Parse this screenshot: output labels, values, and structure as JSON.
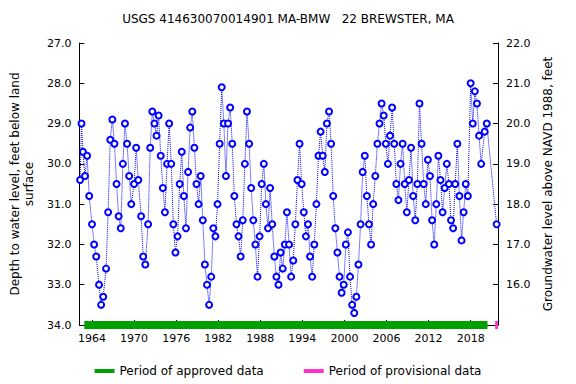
{
  "chart_data": {
    "type": "scatter",
    "title": "USGS 414630070014901 MA-BMW   22 BREWSTER, MA",
    "y_label": "Depth to water level, feet below land\nsurface",
    "y2_label": "Groundwater level above NAVD 1988, feet",
    "grid": false,
    "legend": "bottom",
    "xlim": [
      1962.2,
      2021.9
    ],
    "xticks": [
      1964,
      1970,
      1976,
      1982,
      1988,
      1994,
      2000,
      2006,
      2012,
      2018
    ],
    "ylim": [
      27,
      34
    ],
    "yticks": [
      {
        "value": 27,
        "label": "27.0"
      },
      {
        "value": 28,
        "label": "28.0"
      },
      {
        "value": 29,
        "label": "29.0"
      },
      {
        "value": 30,
        "label": "30.0"
      },
      {
        "value": 31,
        "label": "31.0"
      },
      {
        "value": 32,
        "label": "32.0"
      },
      {
        "value": 33,
        "label": "33.0"
      },
      {
        "value": 34,
        "label": "34.0"
      }
    ],
    "y2lim": [
      15,
      22
    ],
    "y2ticks": [
      {
        "value": 16,
        "label": "16.0"
      },
      {
        "value": 17,
        "label": "17.0"
      },
      {
        "value": 18,
        "label": "18.0"
      },
      {
        "value": 19,
        "label": "19.0"
      },
      {
        "value": 20,
        "label": "20.0"
      },
      {
        "value": 21,
        "label": "21.0"
      },
      {
        "value": 22,
        "label": "22.0"
      }
    ],
    "inverted_y": true,
    "series": [
      {
        "color": "#0000ff",
        "marker": "circle-open",
        "line_style": "dotted",
        "x": [
          1962.3,
          1962.5,
          1962.7,
          1963,
          1963.3,
          1963.6,
          1964,
          1964.3,
          1964.6,
          1965,
          1965.3,
          1965.6,
          1966,
          1966.3,
          1966.6,
          1966.9,
          1967.2,
          1967.5,
          1967.8,
          1968.1,
          1968.4,
          1968.7,
          1969,
          1969.3,
          1969.6,
          1970,
          1970.3,
          1970.6,
          1971,
          1971.3,
          1971.6,
          1972,
          1972.3,
          1972.6,
          1972.9,
          1973.2,
          1973.5,
          1973.8,
          1974.1,
          1974.4,
          1974.7,
          1975,
          1975.3,
          1975.6,
          1975.9,
          1976.2,
          1976.5,
          1976.8,
          1977.1,
          1977.4,
          1977.7,
          1978,
          1978.3,
          1978.6,
          1978.9,
          1979.2,
          1979.5,
          1979.8,
          1980.1,
          1980.4,
          1980.7,
          1981,
          1981.3,
          1981.6,
          1981.9,
          1982.2,
          1982.5,
          1982.8,
          1983.1,
          1983.4,
          1983.7,
          1984,
          1984.3,
          1984.6,
          1984.9,
          1985.2,
          1985.5,
          1985.8,
          1986.1,
          1986.4,
          1986.7,
          1987,
          1987.3,
          1987.6,
          1987.9,
          1988.2,
          1988.5,
          1988.8,
          1989.1,
          1989.4,
          1989.7,
          1990,
          1990.3,
          1990.6,
          1990.9,
          1991.2,
          1991.5,
          1991.8,
          1992.1,
          1992.4,
          1992.7,
          1993,
          1993.3,
          1993.6,
          1993.9,
          1994.2,
          1994.5,
          1994.8,
          1995.1,
          1995.4,
          1995.7,
          1996,
          1996.3,
          1996.6,
          1996.9,
          1997.2,
          1997.5,
          1997.8,
          1998.1,
          1998.4,
          1998.7,
          1999,
          1999.3,
          1999.6,
          1999.9,
          2000.2,
          2000.5,
          2000.8,
          2001.1,
          2001.4,
          2001.7,
          2002,
          2002.3,
          2002.6,
          2002.9,
          2003.2,
          2003.5,
          2003.8,
          2004.1,
          2004.4,
          2004.7,
          2005,
          2005.3,
          2005.6,
          2005.9,
          2006.2,
          2006.5,
          2006.8,
          2007.1,
          2007.4,
          2007.7,
          2008,
          2008.3,
          2008.6,
          2008.9,
          2009.2,
          2009.5,
          2009.8,
          2010.1,
          2010.4,
          2010.7,
          2011,
          2011.3,
          2011.6,
          2011.9,
          2012.2,
          2012.5,
          2012.8,
          2013.1,
          2013.4,
          2013.7,
          2014,
          2014.3,
          2014.6,
          2014.9,
          2015.2,
          2015.5,
          2015.8,
          2016.1,
          2016.4,
          2016.7,
          2017,
          2017.3,
          2017.6,
          2018,
          2018.3,
          2018.6,
          2018.9,
          2019.2,
          2019.5,
          2020,
          2020.3,
          2021.7
        ],
        "values": [
          30.4,
          29.0,
          29.7,
          30.3,
          29.8,
          30.8,
          31.5,
          32.0,
          32.3,
          33.0,
          33.5,
          33.3,
          32.6,
          31.2,
          29.4,
          28.9,
          29.5,
          30.5,
          31.3,
          31.6,
          30.0,
          29.0,
          29.5,
          30.3,
          31.0,
          30.5,
          29.6,
          30.4,
          31.3,
          32.3,
          32.5,
          31.5,
          29.6,
          28.7,
          29.0,
          29.3,
          28.8,
          29.8,
          30.6,
          31.2,
          30.0,
          29.0,
          30.0,
          31.5,
          32.2,
          31.8,
          30.5,
          29.7,
          30.8,
          31.6,
          30.2,
          29.1,
          28.7,
          29.6,
          30.5,
          31.0,
          30.3,
          31.4,
          32.5,
          33.0,
          33.5,
          32.8,
          31.6,
          31.8,
          31.0,
          29.5,
          28.1,
          29.0,
          30.3,
          29.0,
          28.6,
          29.5,
          30.8,
          31.5,
          31.8,
          32.3,
          31.4,
          30.0,
          28.7,
          29.5,
          30.6,
          31.4,
          32.0,
          32.8,
          31.8,
          30.5,
          30.0,
          31.0,
          31.6,
          30.6,
          31.5,
          32.3,
          32.8,
          33.0,
          32.2,
          32.6,
          32.0,
          31.2,
          32.0,
          32.8,
          32.4,
          31.5,
          30.4,
          29.5,
          30.5,
          31.2,
          31.8,
          31.5,
          32.3,
          32.8,
          32.0,
          31.0,
          29.8,
          29.2,
          29.8,
          30.2,
          29.0,
          28.7,
          29.5,
          30.8,
          31.6,
          32.2,
          32.8,
          33.2,
          33.0,
          32.0,
          31.7,
          32.8,
          33.5,
          33.7,
          33.3,
          32.5,
          31.5,
          30.2,
          29.8,
          30.8,
          31.5,
          32.0,
          31.0,
          30.3,
          29.5,
          29.0,
          28.5,
          28.8,
          29.5,
          30.0,
          29.3,
          28.6,
          29.5,
          30.5,
          30.9,
          30.0,
          29.5,
          30.5,
          31.2,
          30.4,
          29.6,
          30.8,
          31.4,
          30.5,
          28.5,
          29.5,
          30.5,
          31.0,
          29.9,
          30.3,
          31.4,
          32.0,
          31.0,
          29.8,
          30.4,
          31.2,
          30.6,
          30.0,
          30.5,
          31.4,
          31.6,
          30.5,
          29.5,
          30.8,
          31.9,
          31.2,
          30.5,
          30.8,
          28.0,
          29.0,
          28.2,
          28.5,
          29.3,
          30.0,
          29.2,
          29.0,
          31.5
        ]
      }
    ],
    "periods": [
      {
        "name": "Period of approved data",
        "color": "#00a000",
        "start": 1962.9,
        "end": 2020.4
      },
      {
        "name": "Period of provisional data",
        "color": "#ff33cc",
        "start": 2021.5,
        "end": 2021.9
      }
    ]
  }
}
